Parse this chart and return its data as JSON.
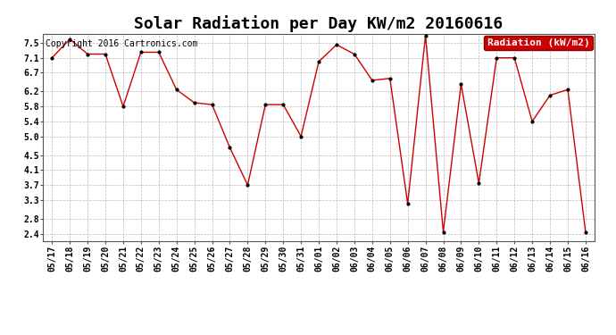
{
  "title": "Solar Radiation per Day KW/m2 20160616",
  "copyright_text": "Copyright 2016 Cartronics.com",
  "legend_label": "Radiation (kW/m2)",
  "background_color": "#ffffff",
  "plot_bg_color": "#ffffff",
  "grid_color": "#bbbbbb",
  "line_color": "#cc0000",
  "marker_color": "#000000",
  "legend_bg": "#cc0000",
  "legend_text_color": "#ffffff",
  "dates": [
    "05/17",
    "05/18",
    "05/19",
    "05/20",
    "05/21",
    "05/22",
    "05/23",
    "05/24",
    "05/25",
    "05/26",
    "05/27",
    "05/28",
    "05/29",
    "05/30",
    "05/31",
    "06/01",
    "06/02",
    "06/03",
    "06/04",
    "06/05",
    "06/06",
    "06/07",
    "06/08",
    "06/09",
    "06/10",
    "06/11",
    "06/12",
    "06/13",
    "06/14",
    "06/15",
    "06/16"
  ],
  "values": [
    7.1,
    7.6,
    7.2,
    7.2,
    5.8,
    7.25,
    7.25,
    6.25,
    5.9,
    5.85,
    4.7,
    3.7,
    5.85,
    5.85,
    5.0,
    7.0,
    7.45,
    7.2,
    6.5,
    6.55,
    3.2,
    7.7,
    2.45,
    6.4,
    3.75,
    7.1,
    7.1,
    5.4,
    6.1,
    6.25,
    2.45
  ],
  "yticks": [
    2.4,
    2.8,
    3.3,
    3.7,
    4.1,
    4.5,
    5.0,
    5.4,
    5.8,
    6.2,
    6.7,
    7.1,
    7.5
  ],
  "ylim": [
    2.2,
    7.75
  ],
  "title_fontsize": 13,
  "tick_fontsize": 7,
  "copyright_fontsize": 7,
  "legend_fontsize": 8
}
